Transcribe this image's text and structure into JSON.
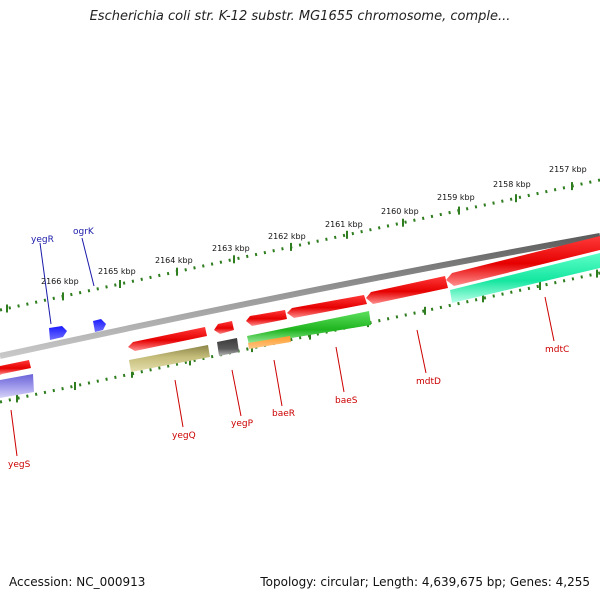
{
  "title": "Escherichia coli str. K-12 substr. MG1655 chromosome, comple...",
  "footer": {
    "accession": "Accession: NC_000913",
    "summary": "Topology: circular; Length: 4,639,675 bp; Genes: 4,255"
  },
  "colors": {
    "backbone": "#7f7f7f",
    "tick": "#2e7d1e",
    "forward_gene": "#ff0000",
    "reverse_gene_label": "#cc0000",
    "rna_gene_label": "#1a1aaa",
    "rna_gene": "#0000ee"
  },
  "outer_ticks": [
    {
      "label": "2157 kbp"
    },
    {
      "label": "2158 kbp"
    },
    {
      "label": "2159 kbp"
    },
    {
      "label": "2160 kbp"
    },
    {
      "label": "2161 kbp"
    },
    {
      "label": "2162 kbp"
    },
    {
      "label": "2163 kbp"
    },
    {
      "label": "2164 kbp"
    },
    {
      "label": "2165 kbp"
    },
    {
      "label": "2166 kbp"
    }
  ],
  "genes": [
    {
      "name": "yegR",
      "color_group": "blue"
    },
    {
      "name": "ogrK",
      "color_group": "blue"
    },
    {
      "name": "yegS",
      "color_group": "red"
    },
    {
      "name": "yegQ",
      "color_group": "red"
    },
    {
      "name": "yegP",
      "color_group": "red"
    },
    {
      "name": "baeR",
      "color_group": "red"
    },
    {
      "name": "baeS",
      "color_group": "red"
    },
    {
      "name": "mdtD",
      "color_group": "red"
    },
    {
      "name": "mdtC",
      "color_group": "red"
    }
  ]
}
